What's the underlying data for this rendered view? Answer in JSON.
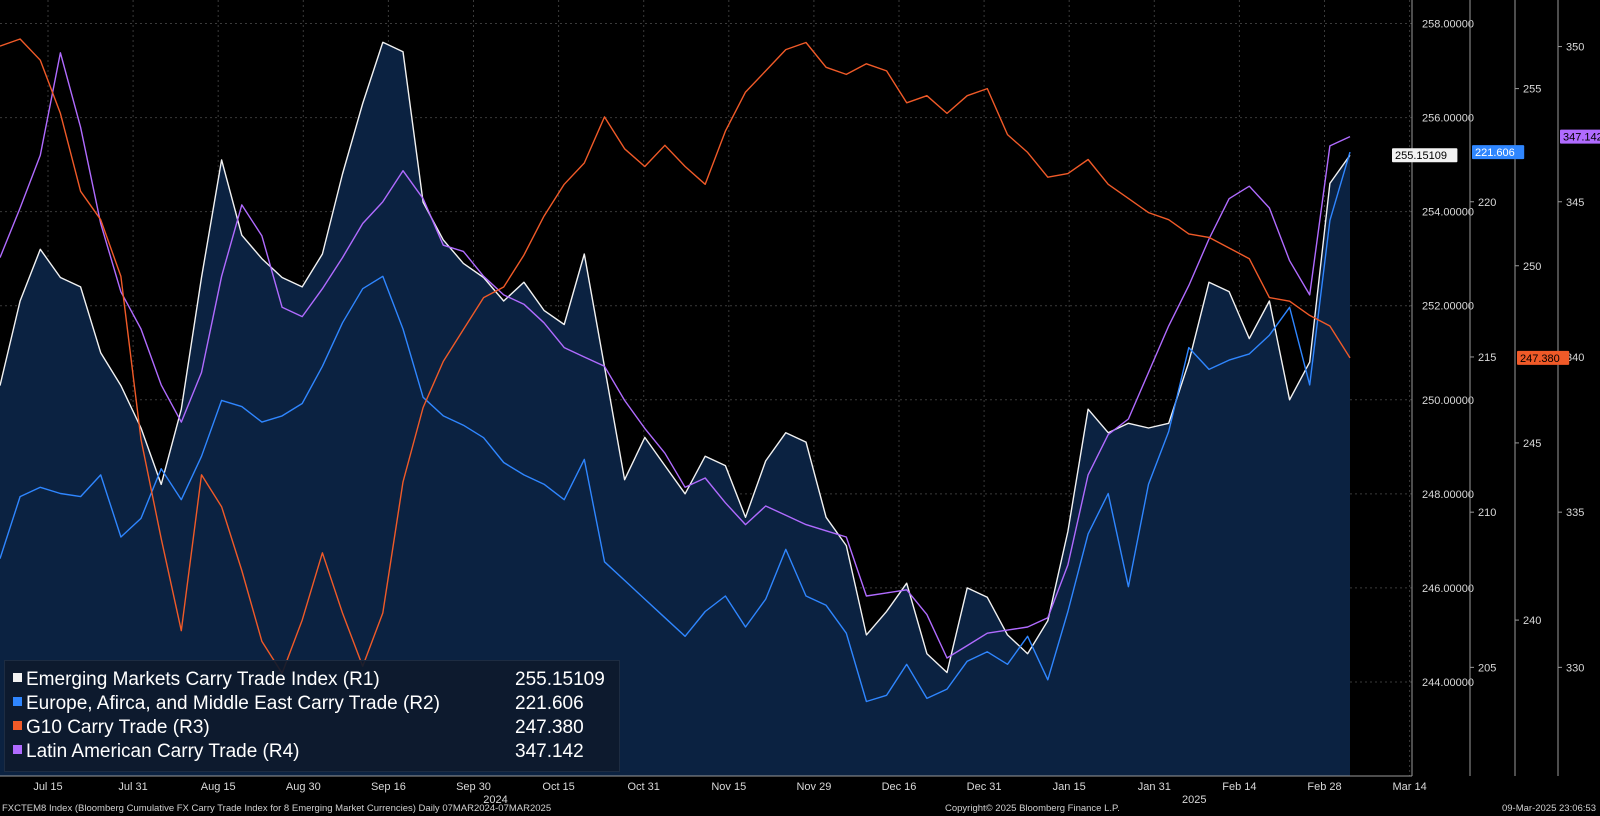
{
  "chart_data": {
    "type": "line",
    "legend_placement": "bottom-left",
    "grid": true,
    "x_ticks": [
      "Jul 15",
      "Jul 31",
      "Aug 15",
      "Aug 30",
      "Sep 16",
      "Sep 30",
      "Oct 15",
      "Oct 31",
      "Nov 15",
      "Nov 29",
      "Dec 16",
      "Dec 31",
      "Jan 15",
      "Jan 31",
      "Feb 14",
      "Feb 28",
      "Mar 14"
    ],
    "year_labels": [
      "2024",
      "2025"
    ],
    "axes": {
      "R1": {
        "ylim": [
          242.0,
          258.5
        ],
        "ticks": [
          "258.00000",
          "256.00000",
          "254.00000",
          "252.00000",
          "250.00000",
          "248.00000",
          "246.00000",
          "244.00000"
        ]
      },
      "R2": {
        "ylim": [
          201.5,
          226.5
        ],
        "ticks": [
          "220",
          "215",
          "210",
          "205"
        ]
      },
      "R3": {
        "ylim": [
          235.6,
          257.5
        ],
        "ticks": [
          "255",
          "250",
          "245",
          "240"
        ]
      },
      "R4": {
        "ylim": [
          326.5,
          351.5
        ],
        "ticks": [
          "350",
          "345",
          "340",
          "335",
          "330"
        ]
      }
    },
    "series": [
      {
        "name": "Emerging Markets Carry Trade Index (R1)",
        "axis": "R1",
        "color": "#f2f2f2",
        "fill": "#0b2241",
        "last_label": "255.15109",
        "values": [
          250.3,
          252.1,
          253.2,
          252.6,
          252.4,
          251.0,
          250.3,
          249.4,
          248.2,
          249.8,
          252.6,
          255.1,
          253.5,
          253.0,
          252.6,
          252.4,
          253.1,
          254.8,
          256.3,
          257.6,
          257.4,
          254.2,
          253.4,
          252.9,
          252.6,
          252.1,
          252.5,
          251.9,
          251.6,
          253.1,
          250.7,
          248.3,
          249.2,
          248.6,
          248.0,
          248.8,
          248.6,
          247.5,
          248.7,
          249.3,
          249.1,
          247.5,
          246.9,
          245.0,
          245.5,
          246.1,
          244.6,
          244.2,
          246.0,
          245.8,
          245.0,
          244.6,
          245.3,
          247.2,
          249.8,
          249.3,
          249.5,
          249.4,
          249.5,
          250.8,
          252.5,
          252.3,
          251.3,
          252.1,
          250.0,
          250.8,
          254.6,
          255.2
        ]
      },
      {
        "name": "Europe, Afirca, and Middle East Carry Trade (R2)",
        "axis": "R2",
        "color": "#2f86ff",
        "last_label": "221.606",
        "values": [
          208.5,
          210.5,
          210.8,
          210.6,
          210.5,
          211.2,
          209.2,
          209.8,
          211.4,
          210.4,
          211.8,
          213.6,
          213.4,
          212.9,
          213.1,
          213.5,
          214.7,
          216.1,
          217.2,
          217.6,
          215.9,
          213.7,
          213.1,
          212.8,
          212.4,
          211.6,
          211.2,
          210.9,
          210.4,
          211.7,
          208.4,
          207.8,
          207.2,
          206.6,
          206.0,
          206.8,
          207.3,
          206.3,
          207.2,
          208.8,
          207.3,
          207.0,
          206.1,
          203.9,
          204.1,
          205.1,
          204.0,
          204.3,
          205.2,
          205.5,
          205.1,
          206.0,
          204.6,
          206.8,
          209.3,
          210.6,
          207.6,
          210.9,
          212.6,
          215.3,
          214.6,
          214.9,
          215.1,
          215.7,
          216.6,
          214.1,
          219.4,
          221.6
        ]
      },
      {
        "name": "G10 Carry Trade (R3)",
        "axis": "R3",
        "color": "#f05a28",
        "last_label": "247.380",
        "values": [
          256.2,
          256.4,
          255.8,
          254.3,
          252.1,
          251.3,
          249.7,
          245.1,
          242.3,
          239.7,
          244.1,
          243.2,
          241.4,
          239.4,
          238.5,
          240.0,
          241.9,
          240.2,
          238.7,
          240.2,
          243.9,
          246.0,
          247.3,
          248.2,
          249.1,
          249.4,
          250.3,
          251.4,
          252.3,
          252.9,
          254.2,
          253.3,
          252.8,
          253.4,
          252.8,
          252.3,
          253.8,
          254.9,
          255.5,
          256.1,
          256.3,
          255.6,
          255.4,
          255.7,
          255.5,
          254.6,
          254.8,
          254.3,
          254.8,
          255.0,
          253.7,
          253.2,
          252.5,
          252.6,
          253.0,
          252.3,
          251.9,
          251.5,
          251.3,
          250.9,
          250.8,
          250.5,
          250.2,
          249.1,
          249.0,
          248.6,
          248.3,
          247.4
        ]
      },
      {
        "name": "Latin American Carry Trade (R4)",
        "axis": "R4",
        "color": "#b06bff",
        "last_label": "347.142",
        "values": [
          343.2,
          344.8,
          346.5,
          349.8,
          347.4,
          344.3,
          342.1,
          340.9,
          339.1,
          337.9,
          339.5,
          342.6,
          344.9,
          343.9,
          341.6,
          341.3,
          342.2,
          343.2,
          344.3,
          345.0,
          346.0,
          345.1,
          343.6,
          343.4,
          342.6,
          342.0,
          341.7,
          341.1,
          340.3,
          340.0,
          339.7,
          338.6,
          337.7,
          336.9,
          335.8,
          336.1,
          335.3,
          334.6,
          335.2,
          334.9,
          334.6,
          334.4,
          334.2,
          332.3,
          332.4,
          332.5,
          331.7,
          330.3,
          330.7,
          331.1,
          331.2,
          331.3,
          331.6,
          333.3,
          336.2,
          337.5,
          338.0,
          339.5,
          341.0,
          342.3,
          343.8,
          345.1,
          345.5,
          344.8,
          343.1,
          342.0,
          346.8,
          347.1
        ]
      }
    ]
  },
  "footer": {
    "left": "FXCTEM8 Index (Bloomberg Cumulative FX Carry Trade Index for 8 Emerging Market Currencies)  Daily 07MAR2024-07MAR2025",
    "center": "Copyright© 2025 Bloomberg Finance L.P.",
    "right": "09-Mar-2025 23:06:53"
  }
}
